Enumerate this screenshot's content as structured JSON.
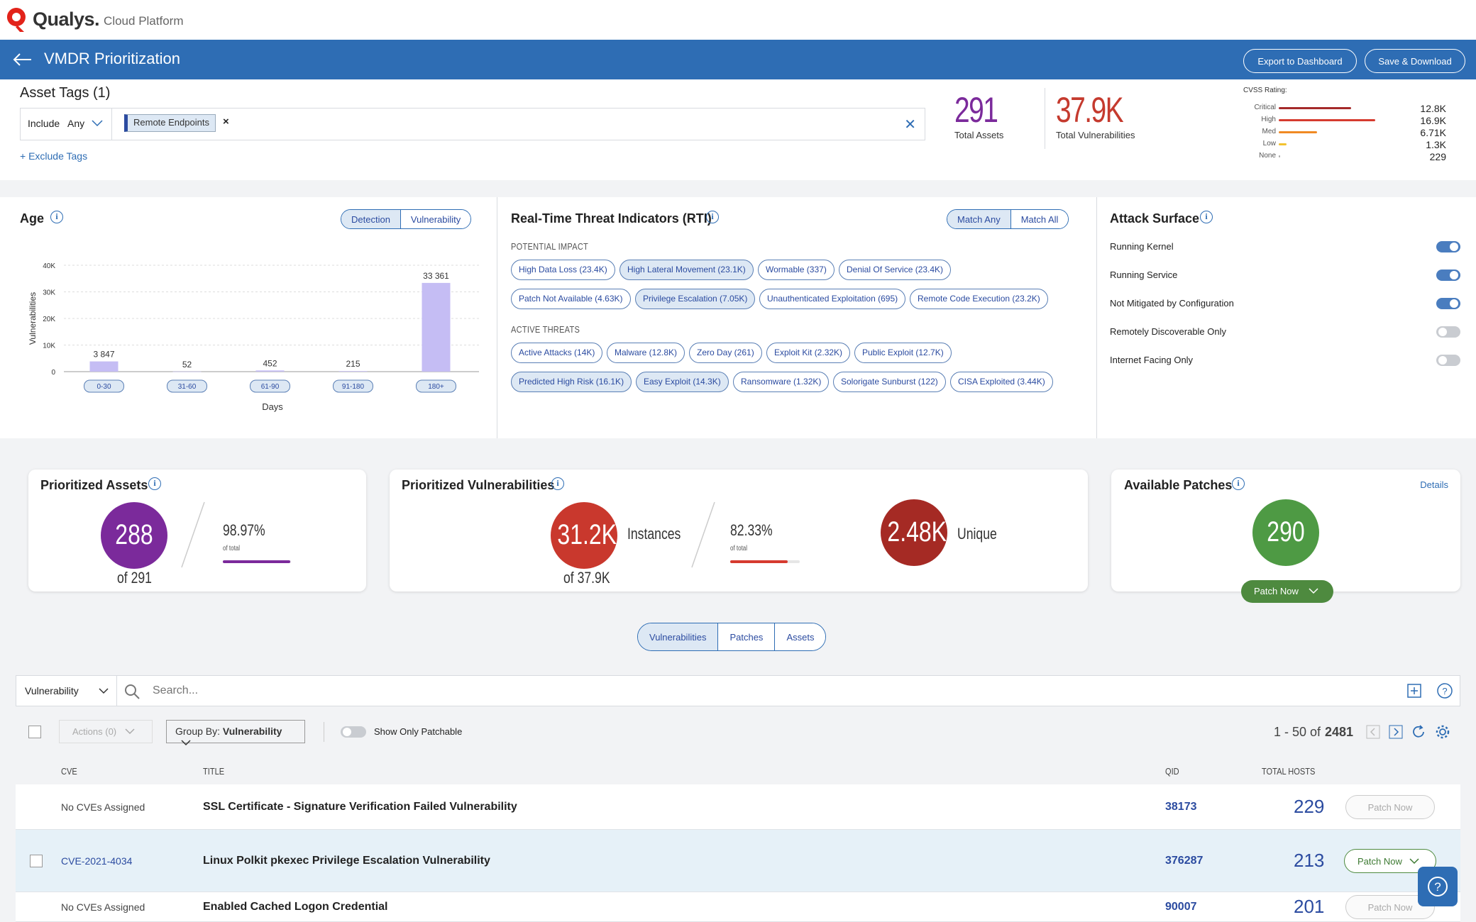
{
  "brand": {
    "name": "Qualys.",
    "product": "Cloud Platform"
  },
  "header": {
    "title": "VMDR Prioritization",
    "export_label": "Export to Dashboard",
    "save_label": "Save & Download"
  },
  "tags": {
    "title": "Asset Tags (1)",
    "include_label": "Include",
    "match_value": "Any",
    "selected_tag": "Remote Endpoints",
    "exclude_link": "+ Exclude Tags"
  },
  "summary": {
    "total_assets": "291",
    "total_assets_label": "Total Assets",
    "total_vulns": "37.9K",
    "total_vulns_label": "Total Vulnerabilities"
  },
  "cvss": {
    "title": "CVSS Rating:",
    "rows": [
      {
        "label": "Critical",
        "value": "12.8K",
        "share": 0.75,
        "color": "#a52a2a"
      },
      {
        "label": "High",
        "value": "16.9K",
        "share": 1.0,
        "color": "#d63b2f"
      },
      {
        "label": "Med",
        "value": "6.71K",
        "share": 0.4,
        "color": "#f08a24"
      },
      {
        "label": "Low",
        "value": "1.3K",
        "share": 0.08,
        "color": "#f2c230"
      },
      {
        "label": "None",
        "value": "229",
        "share": 0.015,
        "color": "#aaaaaa"
      }
    ]
  },
  "age": {
    "title": "Age",
    "toggle": [
      "Detection",
      "Vulnerability"
    ],
    "active_toggle": "Detection"
  },
  "chart_data": {
    "type": "bar",
    "title": "",
    "xlabel": "Days",
    "ylabel": "Vulnerabilities",
    "categories": [
      "0-30",
      "31-60",
      "61-90",
      "91-180",
      "180+"
    ],
    "values": [
      3847,
      52,
      452,
      215,
      33361
    ],
    "value_labels": [
      "3 847",
      "52",
      "452",
      "215",
      "33 361"
    ],
    "yticks": [
      "0",
      "10K",
      "20K",
      "30K",
      "40K"
    ],
    "ylim": [
      0,
      40000
    ],
    "color": "#c5bdf4",
    "grid": true
  },
  "rti": {
    "title": "Real-Time Threat Indicators (RTI)",
    "toggle": [
      "Match Any",
      "Match All"
    ],
    "potential_impact_label": "POTENTIAL IMPACT",
    "active_threats_label": "ACTIVE THREATS",
    "potential_impact": [
      {
        "label": "High Data Loss (23.4K)",
        "selected": false
      },
      {
        "label": "High Lateral Movement (23.1K)",
        "selected": true
      },
      {
        "label": "Wormable (337)",
        "selected": false
      },
      {
        "label": "Denial Of Service (23.4K)",
        "selected": false
      },
      {
        "label": "Patch Not Available (4.63K)",
        "selected": false
      },
      {
        "label": "Privilege Escalation (7.05K)",
        "selected": true
      },
      {
        "label": "Unauthenticated Exploitation (695)",
        "selected": false
      },
      {
        "label": "Remote Code Execution (23.2K)",
        "selected": false
      }
    ],
    "active_threats": [
      {
        "label": "Active Attacks (14K)",
        "selected": false
      },
      {
        "label": "Malware (12.8K)",
        "selected": false
      },
      {
        "label": "Zero Day (261)",
        "selected": false
      },
      {
        "label": "Exploit Kit (2.32K)",
        "selected": false
      },
      {
        "label": "Public Exploit (12.7K)",
        "selected": false
      },
      {
        "label": "Predicted High Risk (16.1K)",
        "selected": true
      },
      {
        "label": "Easy Exploit (14.3K)",
        "selected": true
      },
      {
        "label": "Ransomware (1.32K)",
        "selected": false
      },
      {
        "label": "Solorigate Sunburst (122)",
        "selected": false
      },
      {
        "label": "CISA Exploited (3.44K)",
        "selected": false
      }
    ]
  },
  "attack_surface": {
    "title": "Attack Surface",
    "items": [
      {
        "label": "Running Kernel",
        "on": true
      },
      {
        "label": "Running Service",
        "on": true
      },
      {
        "label": "Not Mitigated by Configuration",
        "on": true
      },
      {
        "label": "Remotely Discoverable Only",
        "on": false
      },
      {
        "label": "Internet Facing Only",
        "on": false
      }
    ]
  },
  "prioritized_assets": {
    "title": "Prioritized Assets",
    "value": "288",
    "of": "of 291",
    "percent": "98.97%",
    "percent_fraction": 0.9897,
    "of_total": "of total",
    "color": "#7b2a9b"
  },
  "prioritized_vulns": {
    "title": "Prioritized Vulnerabilities",
    "instances_value": "31.2K",
    "instances_label": "Instances",
    "of": "of 37.9K",
    "percent": "82.33%",
    "percent_fraction": 0.8233,
    "of_total": "of total",
    "unique_value": "2.48K",
    "unique_label": "Unique"
  },
  "patches": {
    "title": "Available Patches",
    "details": "Details",
    "value": "290",
    "patch_now": "Patch Now"
  },
  "view_tabs": {
    "items": [
      "Vulnerabilities",
      "Patches",
      "Assets"
    ],
    "active": "Vulnerabilities"
  },
  "search": {
    "scope": "Vulnerability",
    "placeholder": "Search..."
  },
  "toolbar": {
    "actions": "Actions (0)",
    "group_by_prefix": "Group By:",
    "group_by_value": "Vulnerability",
    "patchable_label": "Show Only Patchable",
    "range": "1 - 50 of",
    "total": "2481"
  },
  "table": {
    "columns": {
      "cve": "CVE",
      "title": "TITLE",
      "qid": "QID",
      "hosts": "TOTAL HOSTS"
    },
    "rows": [
      {
        "cve": "No CVEs Assigned",
        "title": "SSL Certificate - Signature Verification Failed Vulnerability",
        "qid": "38173",
        "hosts": "229",
        "patch": "Patch Now",
        "patch_enabled": false,
        "highlight": false,
        "checkbox": false
      },
      {
        "cve": "CVE-2021-4034",
        "title": "Linux Polkit pkexec Privilege Escalation Vulnerability",
        "qid": "376287",
        "hosts": "213",
        "patch": "Patch Now",
        "patch_enabled": true,
        "highlight": true,
        "checkbox": true
      },
      {
        "cve": "No CVEs Assigned",
        "title": "Enabled Cached Logon Credential",
        "qid": "90007",
        "hosts": "201",
        "patch": "Patch Now",
        "patch_enabled": false,
        "highlight": false,
        "checkbox": false
      }
    ]
  }
}
